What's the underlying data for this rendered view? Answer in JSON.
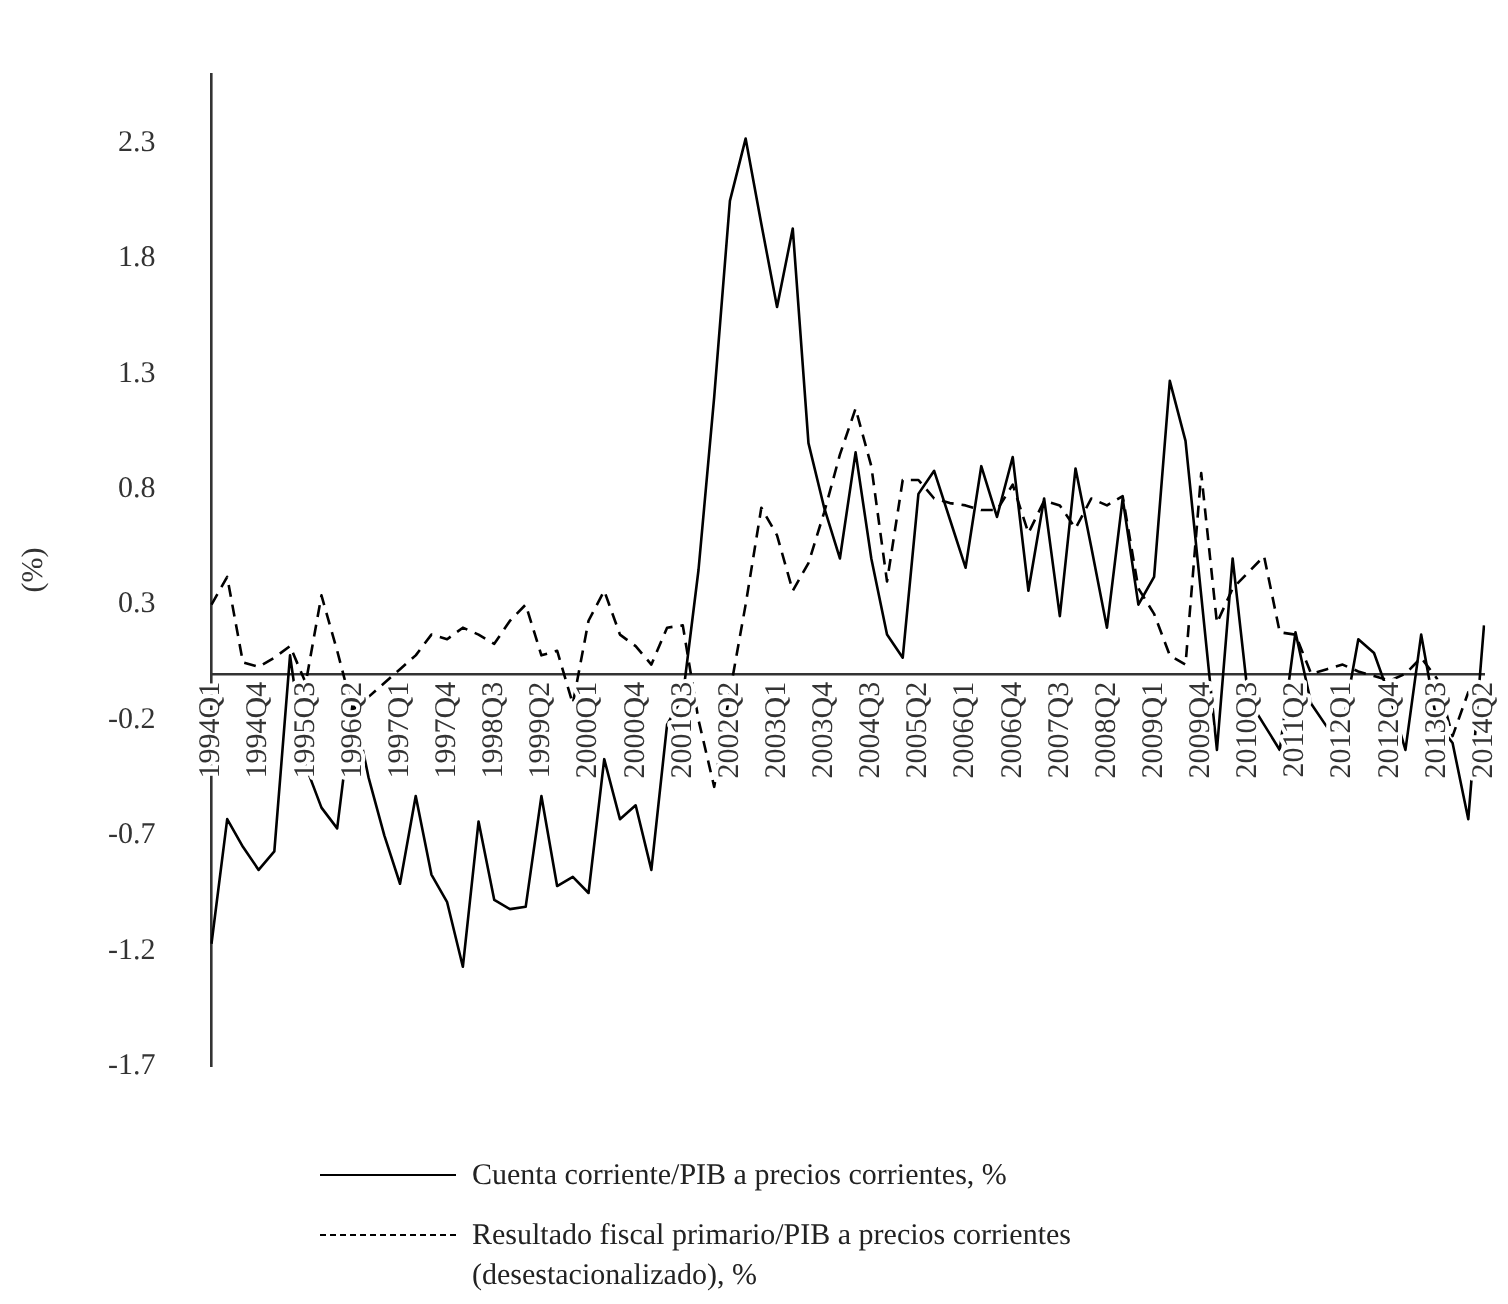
{
  "chart_data": {
    "type": "line",
    "ylabel": "(%)",
    "legend": "bottom",
    "grid": false,
    "marker": "none",
    "categories": [
      "1994Q1",
      null,
      null,
      "1994Q4",
      null,
      null,
      "1995Q3",
      null,
      null,
      "1996Q2",
      null,
      null,
      "1997Q1",
      null,
      null,
      "1997Q4",
      null,
      null,
      "1998Q3",
      null,
      null,
      "1999Q2",
      null,
      null,
      "2000Q1",
      null,
      null,
      "2000Q4",
      null,
      null,
      "2001Q3",
      null,
      null,
      "2002Q2",
      null,
      null,
      "2003Q1",
      null,
      null,
      "2003Q4",
      null,
      null,
      "2004Q3",
      null,
      null,
      "2005Q2",
      null,
      null,
      "2006Q1",
      null,
      null,
      "2006Q4",
      null,
      null,
      "2007Q3",
      null,
      null,
      "2008Q2",
      null,
      null,
      "2009Q1",
      null,
      null,
      "2009Q4",
      null,
      null,
      "2010Q3",
      null,
      null,
      "2011Q2",
      null,
      null,
      "2012Q1",
      null,
      null,
      "2012Q4",
      null,
      null,
      "2013Q3",
      null,
      null,
      "2014Q2"
    ],
    "ylim": [
      -1.7,
      2.6
    ],
    "yticks": [
      -1.7,
      -1.2,
      -0.7,
      -0.2,
      0.3,
      0.8,
      1.3,
      1.8,
      2.3
    ],
    "series": [
      {
        "name": "Cuenta corriente/PIB a precios corrientes, %",
        "color": "#000000",
        "line_style": "solid",
        "values": [
          -1.17,
          -0.63,
          -0.75,
          -0.85,
          -0.77,
          0.08,
          -0.4,
          -0.58,
          -0.67,
          -0.12,
          -0.45,
          -0.7,
          -0.91,
          -0.53,
          -0.87,
          -0.99,
          -1.27,
          -0.64,
          -0.98,
          -1.02,
          -1.01,
          -0.53,
          -0.92,
          -0.88,
          -0.95,
          -0.37,
          -0.63,
          -0.57,
          -0.85,
          -0.22,
          -0.1,
          0.45,
          1.2,
          2.05,
          2.32,
          1.95,
          1.59,
          1.93,
          1.0,
          0.72,
          0.5,
          0.96,
          0.5,
          0.17,
          0.07,
          0.78,
          0.88,
          0.67,
          0.46,
          0.9,
          0.68,
          0.94,
          0.36,
          0.76,
          0.25,
          0.89,
          0.55,
          0.2,
          0.76,
          0.3,
          0.42,
          1.27,
          1.01,
          0.34,
          -0.33,
          0.5,
          -0.11,
          -0.22,
          -0.33,
          0.18,
          -0.13,
          -0.23,
          -0.23,
          0.15,
          0.09,
          -0.1,
          -0.33,
          0.17,
          -0.21,
          -0.3,
          -0.63,
          0.21
        ]
      },
      {
        "name": "Resultado fiscal primario/PIB a precios corrientes (desestacionalizado), %",
        "color": "#000000",
        "line_style": "dashed",
        "values": [
          0.3,
          0.42,
          0.05,
          0.03,
          0.07,
          0.12,
          -0.04,
          0.34,
          0.1,
          -0.16,
          -0.1,
          -0.04,
          0.02,
          0.08,
          0.17,
          0.15,
          0.2,
          0.17,
          0.13,
          0.23,
          0.3,
          0.08,
          0.1,
          -0.13,
          0.23,
          0.36,
          0.17,
          0.12,
          0.04,
          0.2,
          0.21,
          -0.2,
          -0.49,
          -0.08,
          0.3,
          0.72,
          0.6,
          0.36,
          0.48,
          0.7,
          0.95,
          1.15,
          0.9,
          0.4,
          0.84,
          0.84,
          0.76,
          0.74,
          0.73,
          0.71,
          0.71,
          0.82,
          0.61,
          0.75,
          0.73,
          0.63,
          0.76,
          0.73,
          0.77,
          0.37,
          0.26,
          0.08,
          0.04,
          0.87,
          0.22,
          0.37,
          0.44,
          0.51,
          0.18,
          0.17,
          0.0,
          0.02,
          0.04,
          0.01,
          -0.01,
          -0.03,
          0.0,
          0.07,
          -0.02,
          -0.27,
          -0.08,
          -0.05
        ]
      }
    ]
  }
}
